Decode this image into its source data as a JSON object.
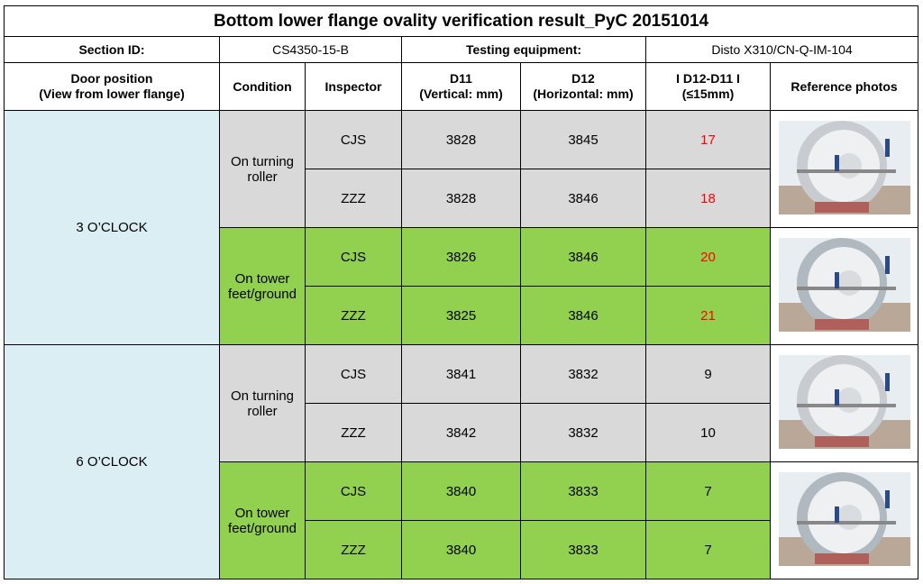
{
  "title": "Bottom lower flange ovality verification result_PyC 20151014",
  "info": {
    "section_id_label": "Section ID:",
    "section_id": "CS4350-15-B",
    "equipment_label": "Testing equipment:",
    "equipment": "Disto X310/CN-Q-IM-104"
  },
  "table": {
    "headers": [
      "Door position\n(View from lower flange)",
      "Condition",
      "Inspector",
      "D11\n(Vertical: mm)",
      "D12\n(Horizontal: mm)",
      "I D12-D11 I\n(≤15mm)",
      "Reference photos"
    ],
    "groups": [
      {
        "door": "3 O’CLOCK",
        "conditions": [
          {
            "condition": "On turning roller",
            "rows": [
              {
                "inspector": "CJS",
                "d11": 3828,
                "d12": 3845,
                "diff": 17
              },
              {
                "inspector": "ZZZ",
                "d11": 3828,
                "d12": 3846,
                "diff": 18
              }
            ]
          },
          {
            "condition": "On tower feet/ground",
            "rows": [
              {
                "inspector": "CJS",
                "d11": 3826,
                "d12": 3846,
                "diff": 20
              },
              {
                "inspector": "ZZZ",
                "d11": 3825,
                "d12": 3846,
                "diff": 21
              }
            ]
          }
        ]
      },
      {
        "door": "6 O’CLOCK",
        "conditions": [
          {
            "condition": "On turning roller",
            "rows": [
              {
                "inspector": "CJS",
                "d11": 3841,
                "d12": 3832,
                "diff": 9
              },
              {
                "inspector": "ZZZ",
                "d11": 3842,
                "d12": 3832,
                "diff": 10
              }
            ]
          },
          {
            "condition": "On tower feet/ground",
            "rows": [
              {
                "inspector": "CJS",
                "d11": 3840,
                "d12": 3833,
                "diff": 7
              },
              {
                "inspector": "ZZZ",
                "d11": 3840,
                "d12": 3833,
                "diff": 7
              }
            ]
          }
        ]
      }
    ]
  }
}
